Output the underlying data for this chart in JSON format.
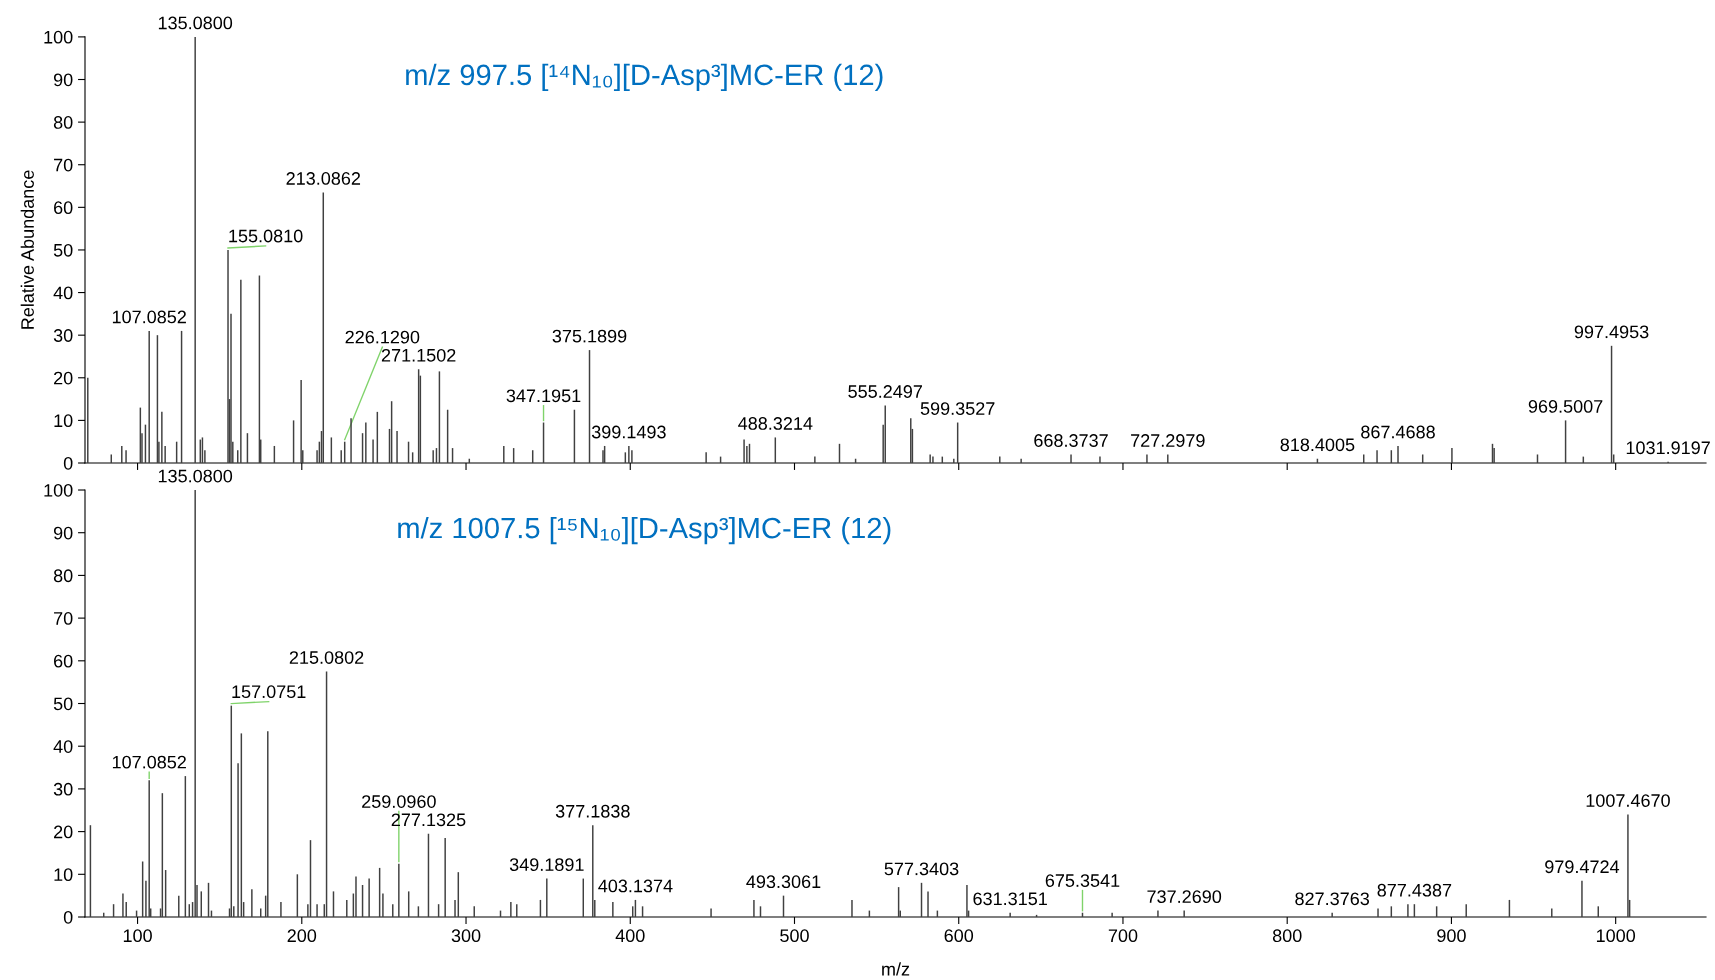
{
  "chart_data": [
    {
      "type": "bar",
      "title": "m/z 997.5 [¹⁴N₁₀][D-Asp³]MC-ER (12)",
      "ylabel": "Relative Abundance",
      "color": "#404040",
      "xlim": [
        68,
        1055
      ],
      "ylim": [
        0,
        100
      ],
      "yticks": [
        0,
        10,
        20,
        30,
        40,
        50,
        60,
        70,
        80,
        90,
        100
      ],
      "xticks": [
        100,
        200,
        300,
        400,
        500,
        600,
        700,
        800,
        900,
        1000
      ],
      "tick_labels": "y",
      "x": [
        69.7,
        84,
        90.4,
        93,
        101.7,
        102.7,
        104.8,
        107.0852,
        112.1,
        113,
        114.8,
        116.8,
        123.8,
        126.8,
        135.08,
        138.2,
        139.5,
        141,
        155.081,
        156,
        156.9,
        158,
        161,
        162.9,
        166.9,
        174.2,
        175,
        183.3,
        195,
        199.6,
        200.6,
        209.3,
        210.7,
        212,
        213.0862,
        218,
        224,
        226.129,
        230,
        237,
        239,
        243.4,
        246,
        253.4,
        254.7,
        258,
        265,
        267.5,
        271.1502,
        272.2,
        280,
        282,
        283.8,
        288.8,
        291.8,
        302,
        323,
        329,
        340.6,
        347.1951,
        366,
        375.1899,
        383.4,
        384.4,
        397,
        399.1493,
        401,
        446.2,
        455,
        469.3,
        471,
        472.6,
        488.3214,
        512.4,
        527.4,
        537.2,
        554,
        555.2497,
        570.8,
        571.8,
        582.6,
        584.3,
        590,
        597,
        599.3527,
        625,
        638,
        668.3737,
        686,
        714.6,
        727.2979,
        818.4005,
        846.6,
        854.7,
        863.4,
        867.4688,
        882.5,
        900.3,
        925,
        926,
        952.4,
        969.5007,
        980.3,
        997.4953,
        998.8,
        1031.9197
      ],
      "values": [
        20,
        2,
        4,
        3,
        13,
        7,
        9,
        31,
        30,
        5,
        12,
        4,
        5,
        31,
        100,
        5.5,
        6,
        3,
        50,
        15,
        35,
        5,
        3,
        43,
        7,
        44,
        5.5,
        4,
        10,
        19.5,
        3,
        3,
        5,
        7.5,
        63.5,
        6,
        3,
        5,
        10.5,
        7,
        9.5,
        5.5,
        12,
        8,
        14.5,
        7.5,
        5,
        2.5,
        22,
        20.5,
        3,
        3.5,
        21.5,
        12.5,
        3.5,
        1,
        4,
        3.5,
        3,
        9.5,
        12.5,
        26.5,
        3,
        4,
        2.5,
        4,
        3,
        2.5,
        1.5,
        5.5,
        4,
        4.5,
        6,
        1.5,
        4.5,
        1,
        9,
        13.5,
        10.5,
        8,
        2,
        1.5,
        1.5,
        1,
        9.5,
        1.5,
        1,
        2,
        1.5,
        2,
        2,
        1,
        2,
        3,
        3,
        4,
        2,
        3.5,
        4.5,
        3.5,
        2,
        10,
        1.5,
        27.5,
        2,
        0.3
      ],
      "annotations": [
        {
          "text": "135.0800",
          "x": 135.08,
          "y": 100
        },
        {
          "text": "213.0862",
          "x": 213.0862,
          "y": 63.5
        },
        {
          "text": "155.0810",
          "x": 155.081,
          "y": 50
        },
        {
          "text": "107.0852",
          "x": 107.0852,
          "y": 31
        },
        {
          "text": "997.4953",
          "x": 997.4953,
          "y": 27.5
        },
        {
          "text": "375.1899",
          "x": 375.1899,
          "y": 26.5
        },
        {
          "text": "271.1502",
          "x": 271.1502,
          "y": 22
        },
        {
          "text": "555.2497",
          "x": 555.2497,
          "y": 13.5
        },
        {
          "text": "969.5007",
          "x": 969.5007,
          "y": 10
        },
        {
          "text": "347.1951",
          "x": 347.1951,
          "y": 9.5
        },
        {
          "text": "599.3527",
          "x": 599.3527,
          "y": 9.5
        },
        {
          "text": "488.3214",
          "x": 488.3214,
          "y": 6
        },
        {
          "text": "226.1290",
          "x": 226.129,
          "y": 5
        },
        {
          "text": "399.1493",
          "x": 399.1493,
          "y": 4
        },
        {
          "text": "867.4688",
          "x": 867.4688,
          "y": 4
        },
        {
          "text": "668.3737",
          "x": 668.3737,
          "y": 2
        },
        {
          "text": "727.2979",
          "x": 727.2979,
          "y": 2
        },
        {
          "text": "818.4005",
          "x": 818.4005,
          "y": 1
        },
        {
          "text": "1031.9197",
          "x": 1031.9197,
          "y": 0.3
        }
      ]
    },
    {
      "type": "bar",
      "title": "m/z 1007.5 [¹⁵N₁₀][D-Asp³]MC-ER (12)",
      "xlabel": "m/z",
      "color": "#404040",
      "xlim": [
        68,
        1055
      ],
      "ylim": [
        0,
        100
      ],
      "yticks": [
        0,
        10,
        20,
        30,
        40,
        50,
        60,
        70,
        80,
        90,
        100
      ],
      "xticks": [
        100,
        200,
        300,
        400,
        500,
        600,
        700,
        800,
        900,
        1000
      ],
      "x": [
        71.3,
        79.4,
        85.4,
        91.1,
        93.1,
        99.4,
        103.1,
        105.1,
        107.0852,
        108,
        114,
        115.1,
        117.1,
        125.1,
        129.1,
        131.5,
        133.5,
        135.08,
        136.2,
        138.8,
        143.2,
        145,
        156,
        157.0751,
        158.6,
        161.2,
        163.2,
        164.6,
        169.6,
        175,
        178,
        179.3,
        187.3,
        197.3,
        203.7,
        205.3,
        209.3,
        213.7,
        215.0802,
        219.3,
        227.4,
        231.4,
        233,
        237,
        241,
        247.4,
        249.4,
        255.4,
        259.096,
        265.1,
        271,
        277.1325,
        283.3,
        287.3,
        293.3,
        295.3,
        305,
        321,
        327.3,
        330.9,
        345.3,
        349.1891,
        371.4,
        377.1838,
        378.4,
        389.4,
        401.5,
        403.1374,
        407.5,
        449.2,
        475.3,
        479.3,
        493.3061,
        535,
        545.6,
        563.4,
        564.4,
        577.3403,
        581.3,
        587,
        605,
        606,
        631.3151,
        647.4,
        675.3541,
        693.4,
        721.3,
        737.269,
        827.3763,
        855.3,
        863.4,
        873.5,
        877.4387,
        891,
        909,
        935.3,
        961.1,
        979.4724,
        989.4,
        1007.467,
        1008.5
      ],
      "values": [
        21.5,
        1,
        3,
        5.5,
        3.5,
        1.5,
        13,
        8.5,
        32,
        2,
        2,
        29,
        11,
        5,
        33,
        3,
        3.5,
        100,
        7.5,
        6,
        8,
        1.5,
        2,
        49.5,
        2.5,
        36,
        43,
        3.5,
        6.5,
        2,
        5,
        43.5,
        3.5,
        10,
        3,
        18,
        3,
        3,
        57.5,
        6,
        4,
        5.5,
        9.5,
        7.5,
        9,
        11.5,
        5.5,
        3,
        12.5,
        6,
        2.5,
        19.5,
        3,
        18.5,
        4,
        10.5,
        2.5,
        1.5,
        3.5,
        3,
        4,
        9,
        9,
        21.5,
        4,
        3.5,
        2.5,
        4,
        2.5,
        2,
        4,
        2.5,
        5,
        4,
        1.5,
        7,
        1.5,
        8,
        6,
        1.5,
        7.5,
        1.5,
        1,
        0.5,
        1,
        1,
        1.5,
        1.5,
        1,
        2,
        2.5,
        3,
        3,
        2.5,
        3,
        4,
        2,
        8.5,
        2.5,
        24,
        4
      ],
      "annotations": [
        {
          "text": "135.0800",
          "x": 135.08,
          "y": 100
        },
        {
          "text": "215.0802",
          "x": 215.0802,
          "y": 57.5
        },
        {
          "text": "157.0751",
          "x": 157.0751,
          "y": 49.5
        },
        {
          "text": "107.0852",
          "x": 107.0852,
          "y": 32
        },
        {
          "text": "1007.4670",
          "x": 1007.467,
          "y": 24
        },
        {
          "text": "377.1838",
          "x": 377.1838,
          "y": 21.5
        },
        {
          "text": "277.1325",
          "x": 277.1325,
          "y": 19.5
        },
        {
          "text": "259.0960",
          "x": 259.096,
          "y": 12.5
        },
        {
          "text": "349.1891",
          "x": 349.1891,
          "y": 9
        },
        {
          "text": "979.4724",
          "x": 979.4724,
          "y": 8.5
        },
        {
          "text": "577.3403",
          "x": 577.3403,
          "y": 8
        },
        {
          "text": "493.3061",
          "x": 493.3061,
          "y": 5
        },
        {
          "text": "403.1374",
          "x": 403.1374,
          "y": 4
        },
        {
          "text": "877.4387",
          "x": 877.4387,
          "y": 3
        },
        {
          "text": "631.3151",
          "x": 631.3151,
          "y": 1
        },
        {
          "text": "675.3541",
          "x": 675.3541,
          "y": 1
        },
        {
          "text": "737.2690",
          "x": 737.269,
          "y": 1.5
        },
        {
          "text": "827.3763",
          "x": 827.3763,
          "y": 1
        }
      ]
    }
  ]
}
